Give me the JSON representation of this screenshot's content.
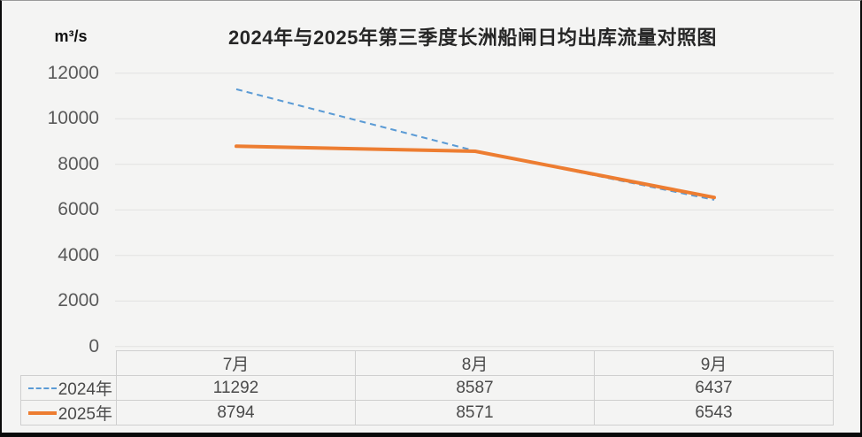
{
  "chart_data": {
    "type": "line",
    "title": "2024年与2025年第三季度长洲船闸日均出库流量对照图",
    "y_unit": "m³/s",
    "categories": [
      "7月",
      "8月",
      "9月"
    ],
    "series": [
      {
        "name": "2024年",
        "style": "dashed",
        "color": "#5B9BD5",
        "values": [
          11292,
          8587,
          6437
        ]
      },
      {
        "name": "2025年",
        "style": "solid",
        "color": "#ED7D31",
        "values": [
          8794,
          8571,
          6543
        ]
      }
    ],
    "ylim": [
      0,
      12000
    ],
    "y_ticks": [
      0,
      2000,
      4000,
      6000,
      8000,
      10000,
      12000
    ],
    "grid": "horizontal",
    "legend_position": "table-left",
    "colors": {
      "background": "#f4f4f3",
      "gridline": "#e2e2e2",
      "tick_text": "#595959",
      "title_text": "#262626",
      "table_border": "#cfcfcf"
    }
  }
}
